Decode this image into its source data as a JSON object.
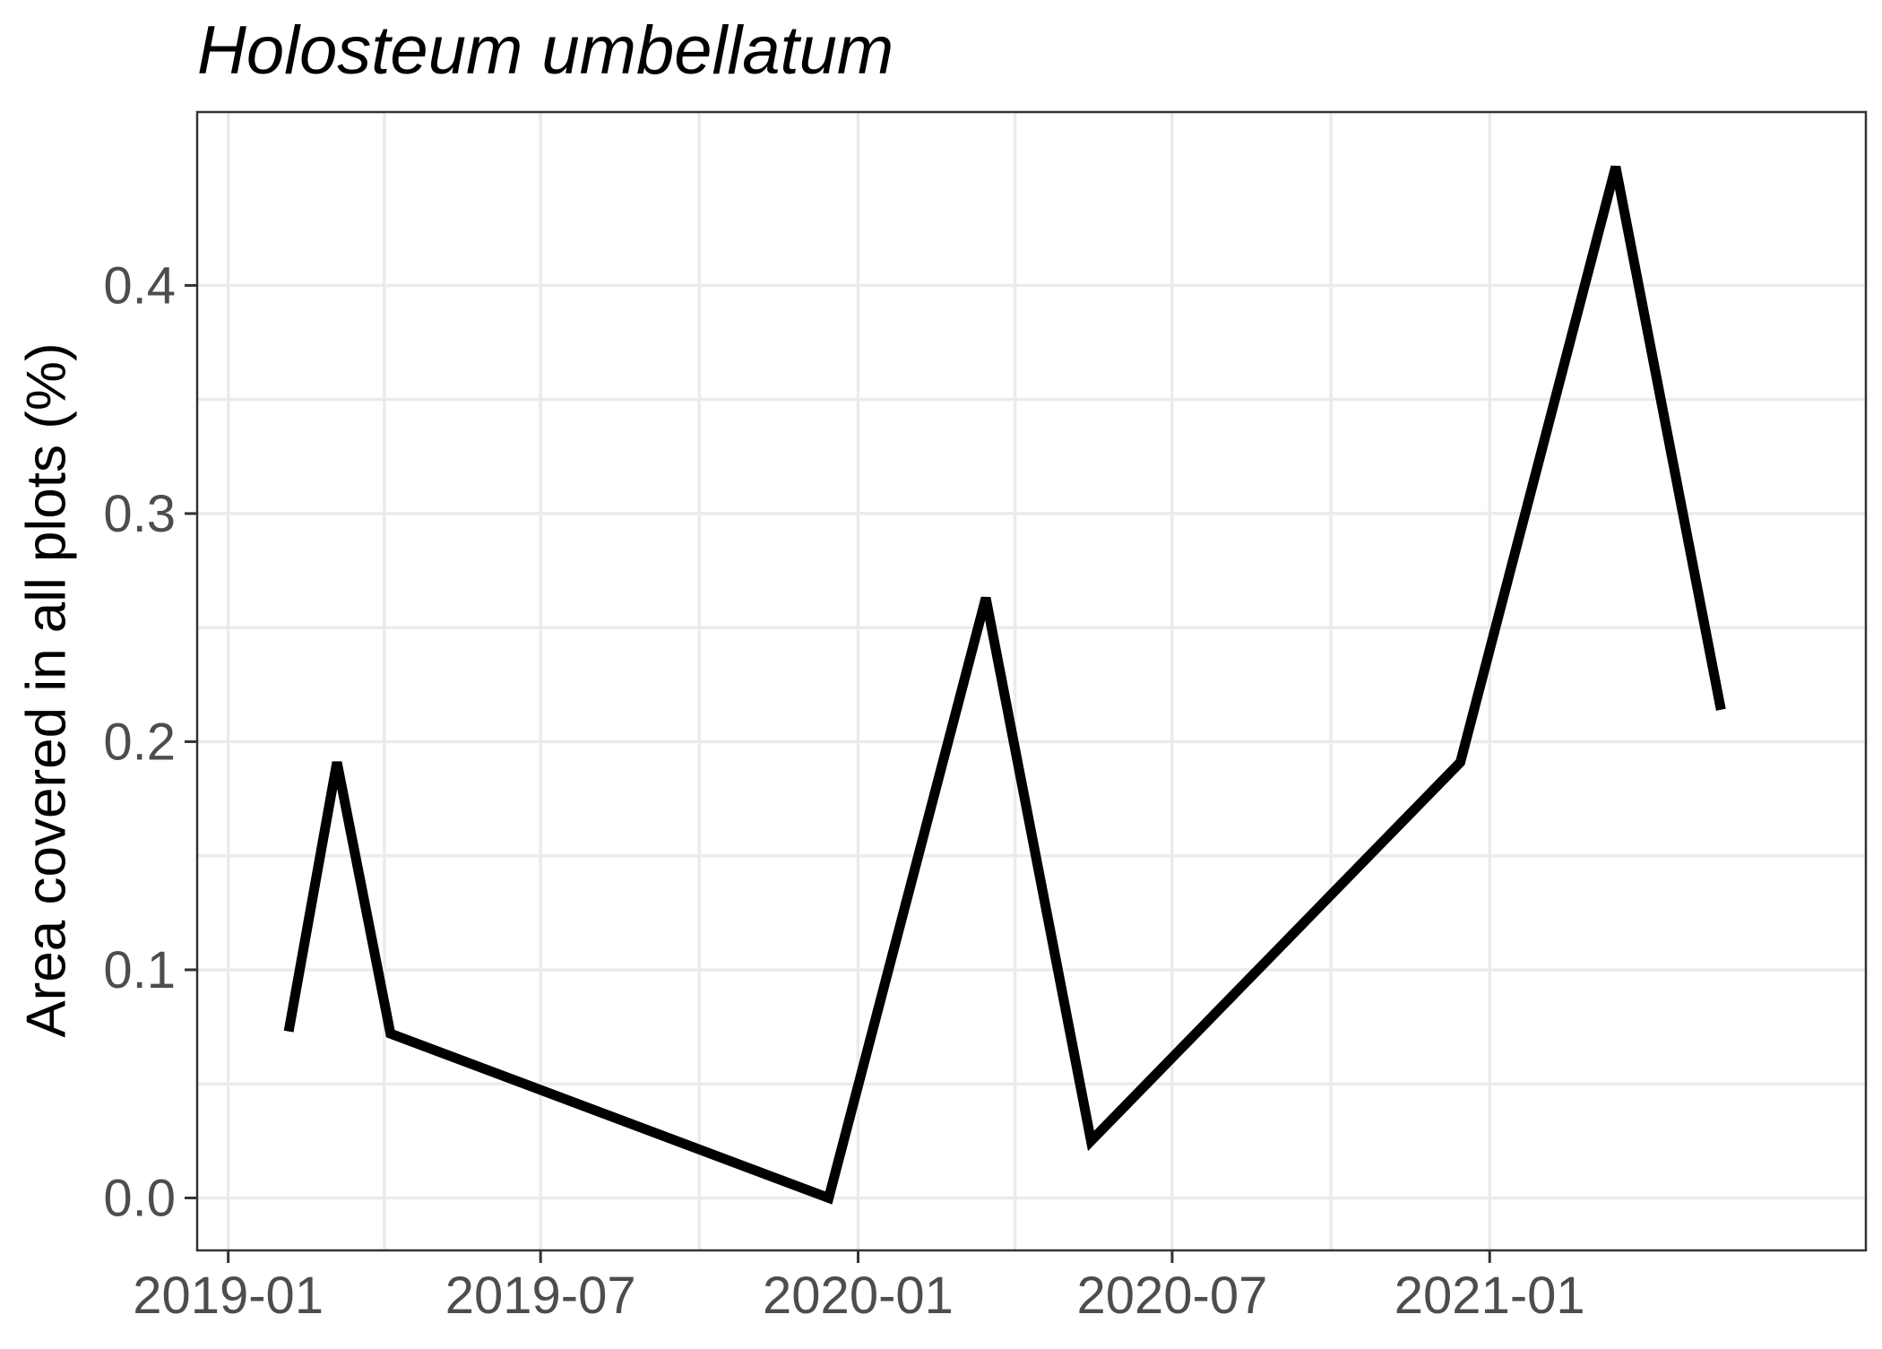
{
  "chart_data": {
    "type": "line",
    "title": "Holosteum umbellatum",
    "xlabel": "",
    "ylabel": "Area covered in all plots (%)",
    "x_type": "date",
    "x_ticks": [
      "2019-01",
      "2019-07",
      "2020-01",
      "2020-07",
      "2021-01"
    ],
    "y_ticks": [
      "0.0",
      "0.1",
      "0.2",
      "0.3",
      "0.4"
    ],
    "xlim": [
      "2018-12-14",
      "2021-08-07"
    ],
    "ylim": [
      -0.023,
      0.476
    ],
    "grid": true,
    "legend": "none",
    "series": [
      {
        "color": "#000000",
        "points": [
          {
            "x": "2019-02-05",
            "y": 0.073
          },
          {
            "x": "2019-03-05",
            "y": 0.191
          },
          {
            "x": "2019-04-05",
            "y": 0.072
          },
          {
            "x": "2019-12-15",
            "y": 0.0
          },
          {
            "x": "2020-03-15",
            "y": 0.263
          },
          {
            "x": "2020-05-15",
            "y": 0.025
          },
          {
            "x": "2020-12-15",
            "y": 0.191
          },
          {
            "x": "2021-03-15",
            "y": 0.452
          },
          {
            "x": "2021-05-15",
            "y": 0.214
          }
        ]
      }
    ]
  }
}
